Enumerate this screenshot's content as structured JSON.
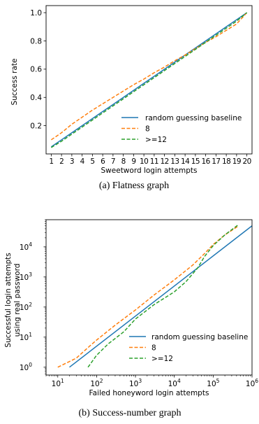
{
  "colors": {
    "baseline": "#1f77b4",
    "s8": "#ff7f0e",
    "s12": "#2ca02c"
  },
  "chart_data": [
    {
      "type": "line",
      "caption": "(a)  Flatness graph",
      "xlabel": "Sweetword login attempts",
      "ylabel": "Success rate",
      "xlim": [
        0.5,
        20.5
      ],
      "ylim": [
        0,
        1.05
      ],
      "x": [
        1,
        2,
        3,
        4,
        5,
        6,
        7,
        8,
        9,
        10,
        11,
        12,
        13,
        14,
        15,
        16,
        17,
        18,
        19,
        20
      ],
      "xticks": [
        "1",
        "2",
        "3",
        "4",
        "5",
        "6",
        "7",
        "8",
        "9",
        "10",
        "11",
        "12",
        "13",
        "14",
        "15",
        "16",
        "17",
        "18",
        "19",
        "20"
      ],
      "yticks": [
        0.2,
        0.4,
        0.6,
        0.8,
        1.0
      ],
      "ytick_labels": [
        "0.2",
        "0.4",
        "0.6",
        "0.8",
        "1.0"
      ],
      "legend_placement": "lower-right",
      "series": [
        {
          "name": "random guessing baseline",
          "style": "solid",
          "color": "#1f77b4",
          "values": [
            0.05,
            0.1,
            0.15,
            0.2,
            0.25,
            0.3,
            0.35,
            0.4,
            0.45,
            0.5,
            0.55,
            0.6,
            0.65,
            0.7,
            0.75,
            0.8,
            0.85,
            0.9,
            0.95,
            1.0
          ]
        },
        {
          "name": "8",
          "style": "dashed",
          "color": "#ff7f0e",
          "values": [
            0.1,
            0.15,
            0.21,
            0.26,
            0.31,
            0.355,
            0.4,
            0.445,
            0.49,
            0.53,
            0.575,
            0.615,
            0.66,
            0.7,
            0.745,
            0.79,
            0.83,
            0.875,
            0.92,
            1.0
          ]
        },
        {
          "name": ">=12",
          "style": "dashed",
          "color": "#2ca02c",
          "values": [
            0.045,
            0.09,
            0.14,
            0.19,
            0.24,
            0.29,
            0.34,
            0.39,
            0.44,
            0.49,
            0.54,
            0.59,
            0.64,
            0.69,
            0.74,
            0.79,
            0.84,
            0.89,
            0.94,
            1.0
          ]
        }
      ]
    },
    {
      "type": "line",
      "caption": "(b)  Success-number graph",
      "xlabel": "Failed honeyword login attempts",
      "ylabel": "Successful login attempts using real password",
      "ylabel_lines": [
        "Successful login attempts",
        "using real password"
      ],
      "xscale": "log",
      "yscale": "log",
      "xlim": [
        5,
        1000000
      ],
      "ylim": [
        0.55,
        80000
      ],
      "xticks": [
        10,
        100,
        1000,
        10000,
        100000,
        1000000
      ],
      "yticks": [
        1,
        10,
        100,
        1000,
        10000
      ],
      "legend_placement": "lower-right",
      "series": [
        {
          "name": "random guessing baseline",
          "style": "solid",
          "color": "#1f77b4",
          "x": [
            20,
            1000000
          ],
          "y": [
            1,
            50000
          ]
        },
        {
          "name": "8",
          "style": "dashed",
          "color": "#ff7f0e",
          "x": [
            10,
            30,
            60,
            100,
            300,
            1000,
            3000,
            10000,
            30000,
            60000,
            100000,
            200000,
            450000
          ],
          "y": [
            1,
            2,
            4.5,
            8,
            25,
            80,
            250,
            800,
            2500,
            6000,
            12000,
            25000,
            50000
          ]
        },
        {
          "name": ">=12",
          "style": "dashed",
          "color": "#2ca02c",
          "x": [
            60,
            100,
            200,
            500,
            1000,
            3000,
            10000,
            20000,
            40000,
            60000,
            100000,
            200000,
            450000
          ],
          "y": [
            1,
            2.5,
            6,
            15,
            40,
            120,
            320,
            700,
            2000,
            4800,
            11000,
            25000,
            55000
          ]
        }
      ]
    }
  ]
}
